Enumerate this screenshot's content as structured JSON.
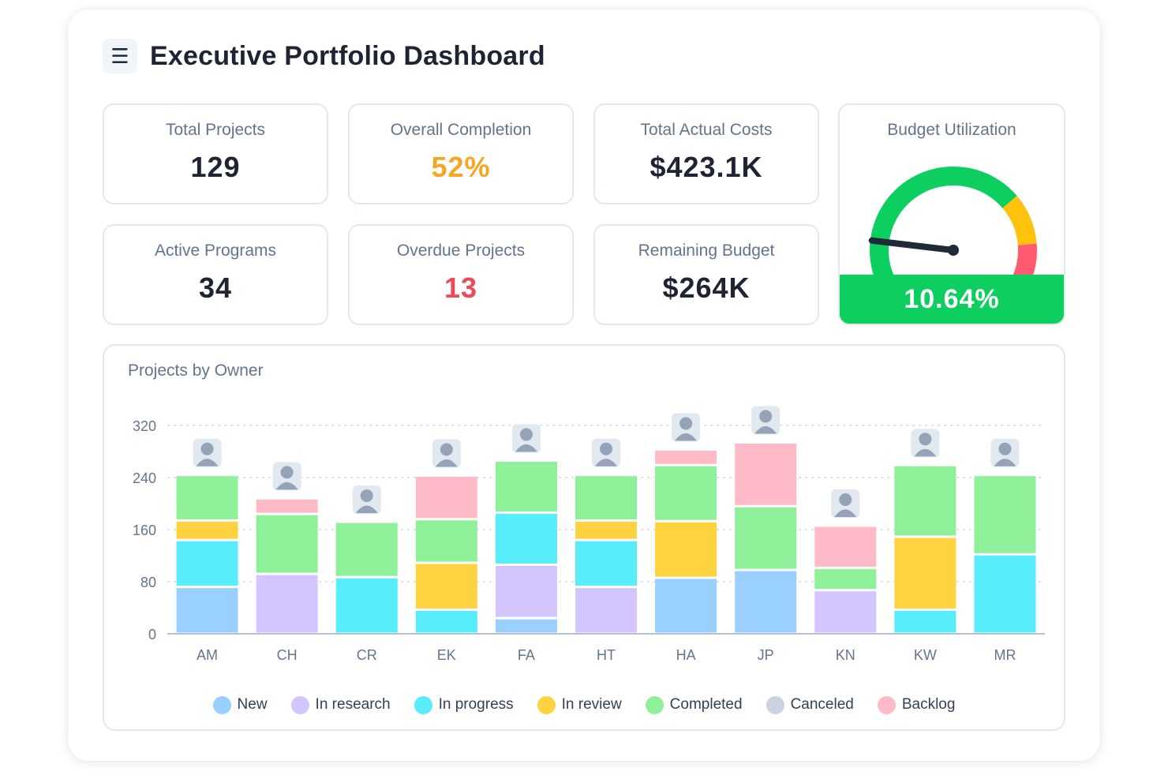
{
  "header": {
    "title": "Executive Portfolio Dashboard",
    "menu_icon": "hamburger-menu-icon"
  },
  "kpis": [
    {
      "id": "total-projects",
      "label": "Total Projects",
      "value": "129",
      "color": "#1e2433"
    },
    {
      "id": "overall-completion",
      "label": "Overall Completion",
      "value": "52%",
      "color": "#f5a623"
    },
    {
      "id": "total-actual-costs",
      "label": "Total Actual Costs",
      "value": "$423.1K",
      "color": "#1e2433"
    },
    {
      "id": "active-programs",
      "label": "Active Programs",
      "value": "34",
      "color": "#1e2433"
    },
    {
      "id": "overdue-projects",
      "label": "Overdue Projects",
      "value": "13",
      "color": "#ef4858"
    },
    {
      "id": "remaining-budget",
      "label": "Remaining Budget",
      "value": "$264K",
      "color": "#1e2433"
    }
  ],
  "gauge": {
    "label": "Budget Utilization",
    "value_text": "10.64%",
    "value": 10.64,
    "needle_fraction": 0.13,
    "zones": [
      {
        "to": 0.72,
        "color": "#0ccf5f"
      },
      {
        "to": 0.88,
        "color": "#ffc20e"
      },
      {
        "to": 1.0,
        "color": "#ff5a6e"
      }
    ],
    "bar_color": "#0ccf5f"
  },
  "chart_data": {
    "type": "bar",
    "stacked": true,
    "title": "Projects by Owner",
    "xlabel": "",
    "ylabel": "",
    "categories": [
      "AM",
      "CH",
      "CR",
      "EK",
      "FA",
      "HT",
      "HA",
      "JP",
      "KN",
      "KW",
      "MR"
    ],
    "yticks": [
      0,
      80,
      160,
      240,
      320
    ],
    "ylim": [
      0,
      320
    ],
    "grid": true,
    "legend_position": "bottom",
    "series": [
      {
        "name": "New",
        "color": "#99d0ff",
        "values": [
          72,
          0,
          0,
          0,
          24,
          0,
          86,
          98,
          0,
          0,
          0
        ]
      },
      {
        "name": "In research",
        "color": "#d4c4ff",
        "values": [
          0,
          92,
          0,
          0,
          82,
          72,
          0,
          0,
          67,
          0,
          0
        ]
      },
      {
        "name": "In progress",
        "color": "#58edfa",
        "values": [
          72,
          0,
          87,
          37,
          80,
          72,
          0,
          0,
          0,
          37,
          122
        ]
      },
      {
        "name": "In review",
        "color": "#ffd23f",
        "values": [
          30,
          0,
          0,
          72,
          0,
          30,
          87,
          0,
          0,
          112,
          0
        ]
      },
      {
        "name": "Completed",
        "color": "#8ff09a",
        "values": [
          70,
          92,
          85,
          67,
          80,
          70,
          86,
          98,
          34,
          110,
          122
        ]
      },
      {
        "name": "Canceled",
        "color": "#cdd2e0",
        "values": [
          0,
          0,
          0,
          0,
          0,
          0,
          0,
          0,
          0,
          0,
          0
        ]
      },
      {
        "name": "Backlog",
        "color": "#ffbac8",
        "values": [
          0,
          24,
          0,
          67,
          0,
          0,
          24,
          98,
          65,
          0,
          0
        ]
      }
    ],
    "axis_color": "#b8c1d1",
    "grid_color": "#c9d1dc"
  }
}
